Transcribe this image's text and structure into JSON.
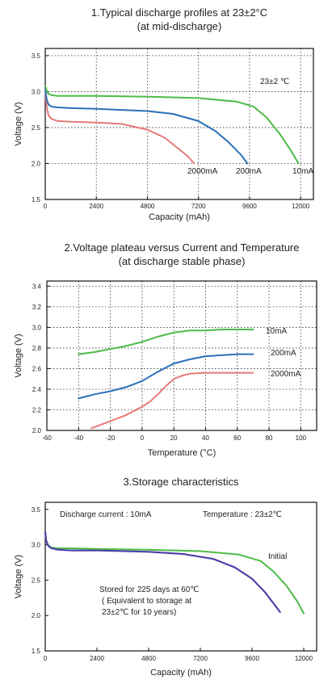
{
  "chart_data": [
    {
      "type": "line",
      "title": "1.Typical discharge profiles at 23±2°C",
      "subtitle": "(at mid-discharge)",
      "xlabel": "Capacity (mAh)",
      "ylabel": "Voltage (V)",
      "xlim": [
        0,
        12600
      ],
      "ylim": [
        1.5,
        3.6
      ],
      "xticks": [
        0,
        2400,
        4800,
        7200,
        9600,
        12000
      ],
      "yticks": [
        1.5,
        2.0,
        2.5,
        3.0,
        3.5
      ],
      "grid": true,
      "annotations": [
        {
          "text": "23±2 ℃"
        }
      ],
      "series": [
        {
          "name": "2000mA",
          "color": "#e87878",
          "x": [
            0,
            60,
            150,
            300,
            600,
            1200,
            2400,
            3600,
            4800,
            5600,
            6200,
            6700,
            7000
          ],
          "y": [
            3.05,
            2.8,
            2.67,
            2.62,
            2.59,
            2.58,
            2.57,
            2.55,
            2.47,
            2.36,
            2.22,
            2.1,
            2.0
          ]
        },
        {
          "name": "200mA",
          "color": "#2a70b9",
          "x": [
            0,
            60,
            150,
            300,
            600,
            1200,
            2400,
            4800,
            6000,
            7200,
            8000,
            8600,
            9200,
            9500
          ],
          "y": [
            3.05,
            2.9,
            2.82,
            2.79,
            2.78,
            2.77,
            2.76,
            2.73,
            2.69,
            2.59,
            2.45,
            2.3,
            2.12,
            2.0
          ]
        },
        {
          "name": "10mA",
          "color": "#4dbb46",
          "x": [
            0,
            60,
            150,
            300,
            600,
            1200,
            2400,
            4800,
            7200,
            9000,
            9800,
            10400,
            11000,
            11500,
            11900
          ],
          "y": [
            3.08,
            3.02,
            2.97,
            2.95,
            2.94,
            2.94,
            2.94,
            2.93,
            2.91,
            2.86,
            2.79,
            2.64,
            2.42,
            2.2,
            2.0
          ]
        }
      ]
    },
    {
      "type": "line",
      "title": "2.Voltage plateau versus Current and Temperature",
      "subtitle": "(at discharge stable phase)",
      "xlabel": "Temperature (°C)",
      "ylabel": "Voltage (V)",
      "xlim": [
        -60,
        110
      ],
      "ylim": [
        2.0,
        3.45
      ],
      "xticks": [
        -60,
        -40,
        -20,
        0,
        20,
        40,
        60,
        80,
        100
      ],
      "yticks": [
        2.0,
        2.2,
        2.4,
        2.6,
        2.8,
        3.0,
        3.2,
        3.4
      ],
      "grid": true,
      "series": [
        {
          "name": "10mA",
          "color": "#4dbb46",
          "x": [
            -40,
            -30,
            -20,
            -10,
            0,
            10,
            20,
            30,
            40,
            50,
            60,
            70
          ],
          "y": [
            2.74,
            2.76,
            2.79,
            2.82,
            2.86,
            2.91,
            2.95,
            2.97,
            2.97,
            2.98,
            2.98,
            2.98
          ]
        },
        {
          "name": "200mA",
          "color": "#2a70b9",
          "x": [
            -40,
            -30,
            -20,
            -10,
            0,
            10,
            20,
            30,
            40,
            50,
            60,
            70
          ],
          "y": [
            2.31,
            2.35,
            2.38,
            2.42,
            2.48,
            2.57,
            2.65,
            2.69,
            2.72,
            2.73,
            2.74,
            2.74
          ]
        },
        {
          "name": "2000mA",
          "color": "#e87878",
          "x": [
            -32,
            -20,
            -10,
            0,
            5,
            10,
            15,
            20,
            25,
            30,
            40,
            50,
            60,
            70
          ],
          "y": [
            2.02,
            2.09,
            2.15,
            2.23,
            2.28,
            2.35,
            2.43,
            2.5,
            2.53,
            2.55,
            2.56,
            2.56,
            2.56,
            2.56
          ]
        }
      ]
    },
    {
      "type": "line",
      "title": "3.Storage characteristics",
      "xlabel": "Capacity (mAh)",
      "ylabel": "Voltage (V)",
      "xlim": [
        0,
        12600
      ],
      "ylim": [
        1.5,
        3.6
      ],
      "xticks": [
        0,
        2400,
        4800,
        7200,
        9600,
        12000
      ],
      "yticks": [
        1.5,
        2.0,
        2.5,
        3.0,
        3.5
      ],
      "grid": false,
      "annotations": [
        {
          "text": "Discharge current : 10mA"
        },
        {
          "text": "Temperature : 23±2℃"
        },
        {
          "text": "Stored for 225 days at 60℃"
        },
        {
          "text": "( Equivalent to storage at"
        },
        {
          "text": "23±2℃ for 10 years)"
        }
      ],
      "series": [
        {
          "name": "Initial",
          "color": "#4dbb46",
          "x": [
            0,
            50,
            150,
            300,
            600,
            1200,
            2400,
            4800,
            7200,
            9000,
            10000,
            10600,
            11200,
            11700,
            12000
          ],
          "y": [
            3.18,
            3.05,
            2.99,
            2.96,
            2.95,
            2.95,
            2.94,
            2.93,
            2.91,
            2.86,
            2.77,
            2.62,
            2.42,
            2.2,
            2.03
          ]
        },
        {
          "name": "Stored for 225 days at 60℃",
          "color": "#4a3fa8",
          "x": [
            0,
            50,
            150,
            300,
            600,
            1200,
            2400,
            4800,
            6400,
            7800,
            8800,
            9600,
            10200,
            10600,
            10900
          ],
          "y": [
            3.18,
            3.05,
            2.98,
            2.95,
            2.93,
            2.92,
            2.92,
            2.9,
            2.87,
            2.8,
            2.68,
            2.52,
            2.33,
            2.17,
            2.05
          ]
        }
      ]
    }
  ]
}
